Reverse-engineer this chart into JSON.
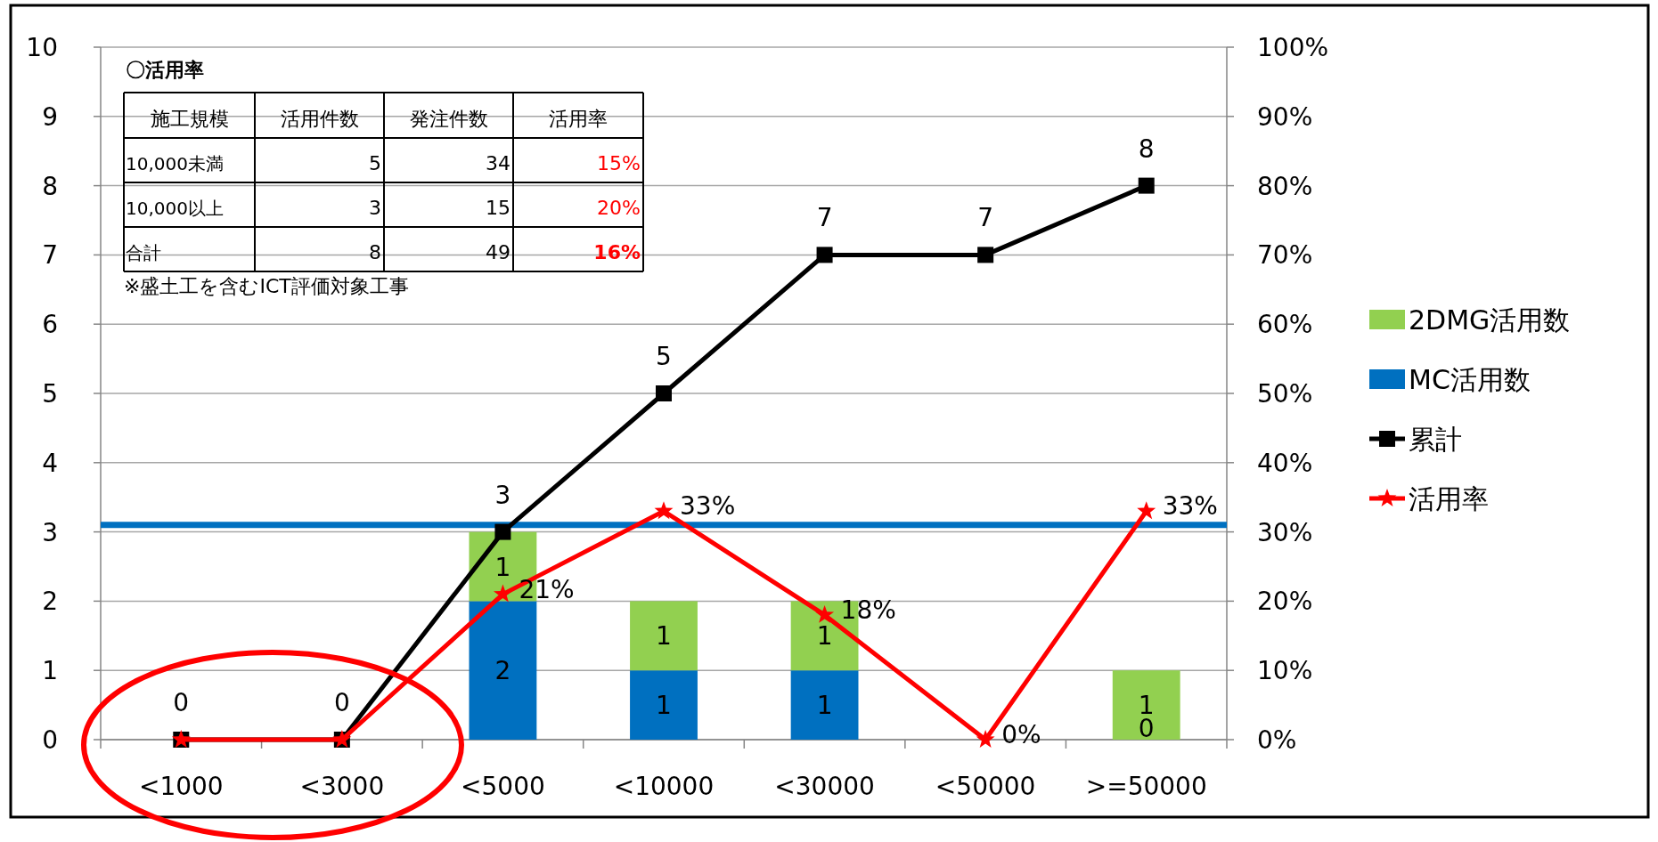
{
  "chart_data": {
    "type": "bar",
    "stacked": true,
    "categories": [
      "<1000",
      "<3000",
      "<5000",
      "<10000",
      "<30000",
      "<50000",
      ">=50000"
    ],
    "series": [
      {
        "name": "MC活用数",
        "color": "#0070c0",
        "values": [
          0,
          0,
          2,
          1,
          1,
          0,
          0
        ],
        "value_labels": [
          null,
          null,
          "2",
          "1",
          "1",
          null,
          "0"
        ]
      },
      {
        "name": "2DMG活用数",
        "color": "#92d050",
        "values": [
          0,
          0,
          1,
          1,
          1,
          0,
          1
        ],
        "value_labels": [
          null,
          null,
          "1",
          "1",
          "1",
          null,
          "1"
        ]
      },
      {
        "name": "累計",
        "type": "line",
        "color": "#000000",
        "marker": "square",
        "values": [
          0,
          0,
          3,
          5,
          7,
          7,
          8
        ],
        "value_labels": [
          "0",
          "0",
          "3",
          "5",
          "7",
          "7",
          "8"
        ]
      },
      {
        "name": "活用率",
        "type": "line",
        "color": "#ff0000",
        "marker": "star",
        "axis": "y2",
        "values": [
          0,
          0,
          21,
          33,
          18,
          0,
          33
        ],
        "value_labels": [
          null,
          null,
          "21%",
          "33%",
          "18%",
          "0%",
          "33%"
        ]
      }
    ],
    "ylim": [
      0,
      10
    ],
    "yticks": [
      0,
      1,
      2,
      3,
      4,
      5,
      6,
      7,
      8,
      9,
      10
    ],
    "y2lim": [
      0,
      100
    ],
    "y2ticks": [
      {
        "value": 0,
        "label": "0%"
      },
      {
        "value": 10,
        "label": "10%"
      },
      {
        "value": 20,
        "label": "20%"
      },
      {
        "value": 30,
        "label": "30%"
      },
      {
        "value": 40,
        "label": "40%"
      },
      {
        "value": 50,
        "label": "50%"
      },
      {
        "value": 60,
        "label": "60%"
      },
      {
        "value": 70,
        "label": "70%"
      },
      {
        "value": 80,
        "label": "80%"
      },
      {
        "value": 90,
        "label": "90%"
      },
      {
        "value": 100,
        "label": "100%"
      }
    ],
    "ref_lines": [
      {
        "axis": "y2",
        "value": 31,
        "color": "#0070c0",
        "line_style": "solid"
      }
    ],
    "grid": "y",
    "legend": "right",
    "annotations": [
      "〇活用率",
      "施工規模",
      "活用件数",
      "発注件数",
      "活用率",
      "10,000未満",
      "5",
      "34",
      "15%",
      "10,000以上",
      "3",
      "15",
      "20%",
      "合計",
      "8",
      "49",
      "16%",
      "※盛土工を含むICT評価対象工事"
    ]
  }
}
